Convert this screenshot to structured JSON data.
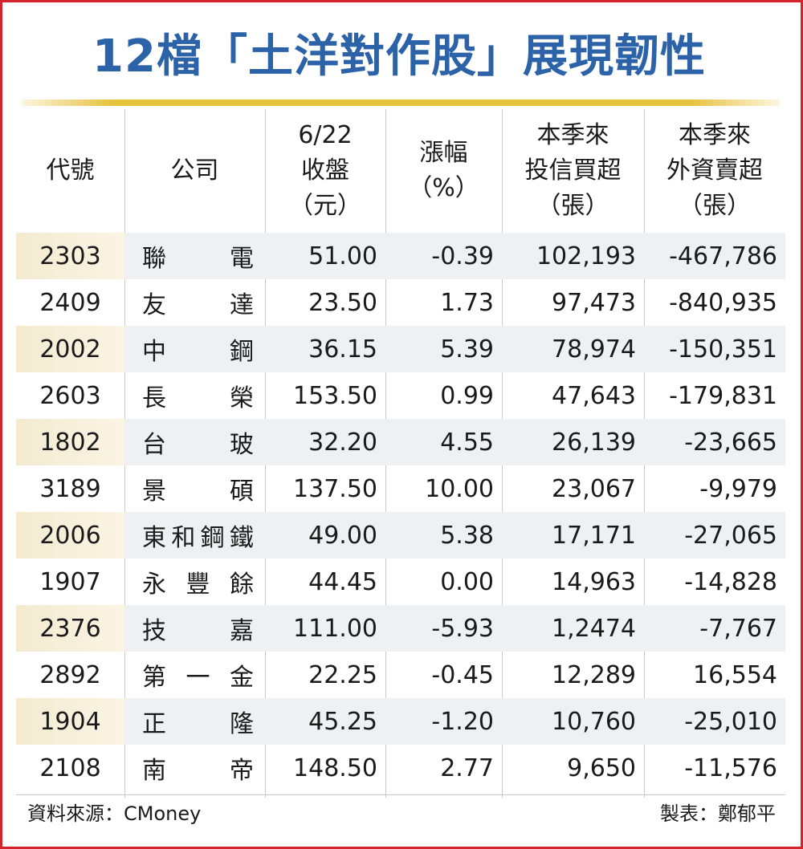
{
  "title": "12檔「土洋對作股」展現韌性",
  "headers": {
    "code": [
      "代號"
    ],
    "company": [
      "公司"
    ],
    "close": [
      "6/22",
      "收盤",
      "（元）"
    ],
    "change": [
      "漲幅",
      "（%）"
    ],
    "trust": [
      "本季來",
      "投信買超",
      "（張）"
    ],
    "foreign": [
      "本季來",
      "外資賣超",
      "（張）"
    ]
  },
  "rows": [
    {
      "code": "2303",
      "name": [
        "聯",
        "電"
      ],
      "close": "51.00",
      "change": "-0.39",
      "trust": "102,193",
      "foreign": "-467,786"
    },
    {
      "code": "2409",
      "name": [
        "友",
        "達"
      ],
      "close": "23.50",
      "change": "1.73",
      "trust": "97,473",
      "foreign": "-840,935"
    },
    {
      "code": "2002",
      "name": [
        "中",
        "鋼"
      ],
      "close": "36.15",
      "change": "5.39",
      "trust": "78,974",
      "foreign": "-150,351"
    },
    {
      "code": "2603",
      "name": [
        "長",
        "榮"
      ],
      "close": "153.50",
      "change": "0.99",
      "trust": "47,643",
      "foreign": "-179,831"
    },
    {
      "code": "1802",
      "name": [
        "台",
        "玻"
      ],
      "close": "32.20",
      "change": "4.55",
      "trust": "26,139",
      "foreign": "-23,665"
    },
    {
      "code": "3189",
      "name": [
        "景",
        "碩"
      ],
      "close": "137.50",
      "change": "10.00",
      "trust": "23,067",
      "foreign": "-9,979"
    },
    {
      "code": "2006",
      "name": [
        "東",
        "和",
        "鋼",
        "鐵"
      ],
      "close": "49.00",
      "change": "5.38",
      "trust": "17,171",
      "foreign": "-27,065"
    },
    {
      "code": "1907",
      "name": [
        "永",
        "豐",
        "餘"
      ],
      "close": "44.45",
      "change": "0.00",
      "trust": "14,963",
      "foreign": "-14,828"
    },
    {
      "code": "2376",
      "name": [
        "技",
        "嘉"
      ],
      "close": "111.00",
      "change": "-5.93",
      "trust": "1,2474",
      "foreign": "-7,767"
    },
    {
      "code": "2892",
      "name": [
        "第",
        "一",
        "金"
      ],
      "close": "22.25",
      "change": "-0.45",
      "trust": "12,289",
      "foreign": "16,554"
    },
    {
      "code": "1904",
      "name": [
        "正",
        "隆"
      ],
      "close": "45.25",
      "change": "-1.20",
      "trust": "10,760",
      "foreign": "-25,010"
    },
    {
      "code": "2108",
      "name": [
        "南",
        "帝"
      ],
      "close": "148.50",
      "change": "2.77",
      "trust": "9,650",
      "foreign": "-11,576"
    }
  ],
  "footer": {
    "source": "資料來源：CMoney",
    "maker": "製表：鄭郁平"
  },
  "colors": {
    "border": "#d4232b",
    "title": "#2c62a8",
    "rule": "#e8c23c",
    "shade_code": "#f3ead0",
    "shade_row": "#eef0f4"
  }
}
